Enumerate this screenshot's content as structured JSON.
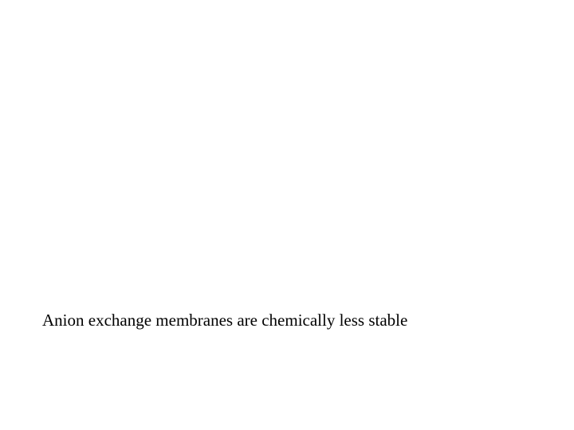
{
  "slide": {
    "body_text": "Anion exchange membranes are chemically less stable",
    "background_color": "#ffffff",
    "text_color": "#000000",
    "font_family": "Times New Roman",
    "font_size_pt": 16
  }
}
